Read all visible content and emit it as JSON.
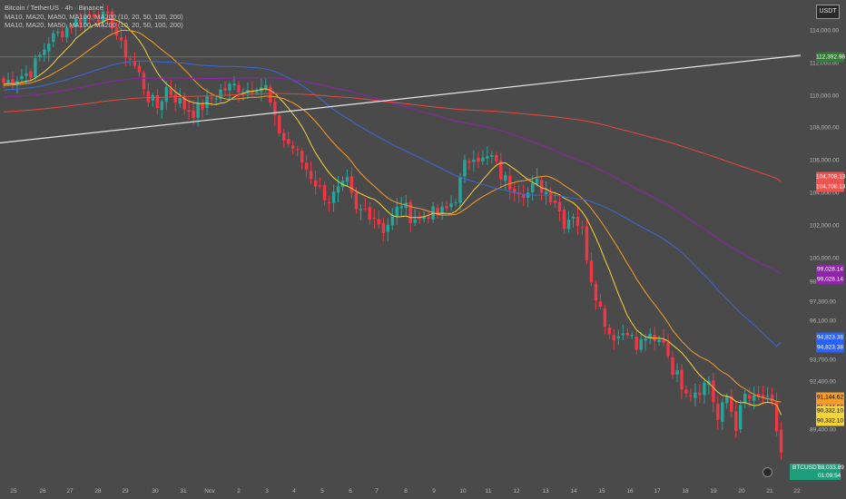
{
  "legend": {
    "line1": "Bitcoin / TetherUS · 4h · Binance",
    "line2": "MA10, MA20, MA50, MA100, MA200 (10, 20, 50, 100, 200)",
    "line3": "MA10, MA20, MA50, MA100, MA200 (10, 20, 50, 100, 200)"
  },
  "currency_badge": "USDT",
  "ticker": {
    "symbol": "BTCUSDT",
    "price": "88,033.89",
    "countdown": "01:09:54"
  },
  "colors": {
    "background": "#4a4a4a",
    "up": "#26a69a",
    "down": "#f23645",
    "ma10": "#f5d33c",
    "ma20": "#f39c2a",
    "ma50": "#3a67d8",
    "ma100": "#8e24aa",
    "ma200": "#e8473e",
    "trendline": "#e6e6e6",
    "resistance_label": "#2e7d32"
  },
  "price_labels": [
    {
      "text": "112,392.98",
      "bg": "#2e7d32",
      "fg": "#ffffff"
    },
    {
      "text": "104,708.13",
      "bg": "#ef5350",
      "fg": "#ffffff"
    },
    {
      "text": "104,708.13",
      "bg": "#ef5350",
      "fg": "#ffffff"
    },
    {
      "text": "99,028.14",
      "bg": "#8e24aa",
      "fg": "#ffffff"
    },
    {
      "text": "99,028.14",
      "bg": "#8e24aa",
      "fg": "#ffffff"
    },
    {
      "text": "94,823.38",
      "bg": "#2962ff",
      "fg": "#ffffff"
    },
    {
      "text": "94,823.38",
      "bg": "#2962ff",
      "fg": "#ffffff"
    },
    {
      "text": "91,144.62",
      "bg": "#f39c2a",
      "fg": "#000000"
    },
    {
      "text": "91,144.62",
      "bg": "#f39c2a",
      "fg": "#000000"
    },
    {
      "text": "90,332.10",
      "bg": "#f5d33c",
      "fg": "#000000"
    },
    {
      "text": "90,332.10",
      "bg": "#f5d33c",
      "fg": "#000000"
    }
  ],
  "chart_data": {
    "type": "candlestick",
    "symbol": "BTCUSDT",
    "interval": "4h",
    "ylim": [
      86400,
      115900
    ],
    "xlim": [
      24.65,
      22.35
    ],
    "y_ticks": [
      "114,000.00",
      "112,000.00",
      "110,000.00",
      "108,000.00",
      "106,000.00",
      "104,000.00",
      "102,000.00",
      "100,000.00",
      "98,500.00",
      "97,300.00",
      "96,100.00",
      "93,700.00",
      "92,400.00",
      "89,400.00"
    ],
    "x_ticks": [
      "25",
      "26",
      "27",
      "28",
      "29",
      "30",
      "31",
      "Nov",
      "2",
      "3",
      "4",
      "5",
      "6",
      "7",
      "8",
      "9",
      "10",
      "11",
      "12",
      "13",
      "14",
      "15",
      "16",
      "17",
      "18",
      "19",
      "20",
      "21",
      "22"
    ],
    "horizontal_line": 112392.98,
    "trendline": {
      "from": [
        24.65,
        107100
      ],
      "to": [
        22.35,
        112500
      ]
    },
    "candle_close_anchors": [
      [
        0,
        110800
      ],
      [
        6,
        111500
      ],
      [
        10,
        113400
      ],
      [
        14,
        114200
      ],
      [
        16,
        114600
      ],
      [
        20,
        115100
      ],
      [
        24,
        114500
      ],
      [
        26,
        113000
      ],
      [
        28,
        112300
      ],
      [
        30,
        111300
      ],
      [
        32,
        109900
      ],
      [
        34,
        109300
      ],
      [
        36,
        110500
      ],
      [
        40,
        109300
      ],
      [
        42,
        109000
      ],
      [
        44,
        109400
      ],
      [
        48,
        110300
      ],
      [
        51,
        110600
      ],
      [
        54,
        110400
      ],
      [
        56,
        110700
      ],
      [
        58,
        110500
      ],
      [
        60,
        108400
      ],
      [
        62,
        107300
      ],
      [
        64,
        106800
      ],
      [
        68,
        105100
      ],
      [
        70,
        104200
      ],
      [
        72,
        103600
      ],
      [
        74,
        104100
      ],
      [
        76,
        104600
      ],
      [
        78,
        102800
      ],
      [
        80,
        103000
      ],
      [
        82,
        102600
      ],
      [
        84,
        101800
      ],
      [
        86,
        102500
      ],
      [
        88,
        103400
      ],
      [
        90,
        102600
      ],
      [
        92,
        102400
      ],
      [
        94,
        102800
      ],
      [
        96,
        102700
      ],
      [
        98,
        103000
      ],
      [
        100,
        103800
      ],
      [
        102,
        105700
      ],
      [
        104,
        106500
      ],
      [
        106,
        106000
      ],
      [
        108,
        106200
      ],
      [
        110,
        105100
      ],
      [
        112,
        104500
      ],
      [
        114,
        104300
      ],
      [
        116,
        104000
      ],
      [
        118,
        104600
      ],
      [
        120,
        104100
      ],
      [
        122,
        103600
      ],
      [
        124,
        102200
      ],
      [
        126,
        102800
      ],
      [
        128,
        101600
      ],
      [
        130,
        98800
      ],
      [
        132,
        96900
      ],
      [
        134,
        95400
      ],
      [
        136,
        95200
      ],
      [
        138,
        95700
      ],
      [
        140,
        94400
      ],
      [
        142,
        95200
      ],
      [
        144,
        94700
      ],
      [
        146,
        95000
      ],
      [
        148,
        93200
      ],
      [
        150,
        92300
      ],
      [
        152,
        91800
      ],
      [
        154,
        92000
      ],
      [
        156,
        92500
      ],
      [
        158,
        90000
      ],
      [
        160,
        91500
      ],
      [
        162,
        89700
      ],
      [
        164,
        91500
      ],
      [
        166,
        91200
      ],
      [
        168,
        91400
      ],
      [
        170,
        90800
      ],
      [
        172,
        88033.89
      ]
    ],
    "moving_averages": [
      {
        "name": "MA10",
        "period": 10,
        "last": 90332.1
      },
      {
        "name": "MA20",
        "period": 20,
        "last": 91144.62
      },
      {
        "name": "MA50",
        "period": 50,
        "last": 94823.38
      },
      {
        "name": "MA100",
        "period": 100,
        "last": 99028.14
      },
      {
        "name": "MA200",
        "period": 200,
        "last": 104708.13
      }
    ],
    "last_price": 88033.89
  }
}
